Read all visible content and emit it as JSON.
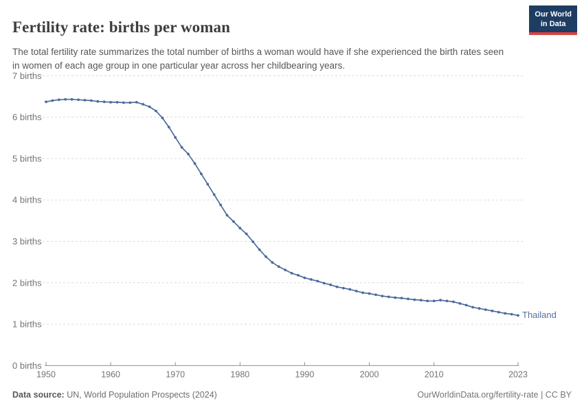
{
  "header": {
    "title": "Fertility rate: births per woman",
    "subtitle": "The total fertility rate summarizes the total number of births a woman would have if she experienced the birth rates seen in women of each age group in one particular year across her childbearing years.",
    "logo": {
      "line1": "Our World",
      "line2": "in Data"
    }
  },
  "chart_data": {
    "type": "line",
    "title": "Fertility rate: births per woman",
    "ylabel_unit": "births",
    "ylim": [
      0,
      7
    ],
    "yticks": [
      0,
      1,
      2,
      3,
      4,
      5,
      6,
      7
    ],
    "ytick_labels": [
      "0 births",
      "1 births",
      "2 births",
      "3 births",
      "4 births",
      "5 births",
      "6 births",
      "7 births"
    ],
    "xlim": [
      1950,
      2023
    ],
    "xticks": [
      1950,
      1960,
      1970,
      1980,
      1990,
      2000,
      2010,
      2023
    ],
    "grid": "horizontal-dashed",
    "legend_position": "end-of-line-label",
    "x": [
      1950,
      1951,
      1952,
      1953,
      1954,
      1955,
      1956,
      1957,
      1958,
      1959,
      1960,
      1961,
      1962,
      1963,
      1964,
      1965,
      1966,
      1967,
      1968,
      1969,
      1970,
      1971,
      1972,
      1973,
      1974,
      1975,
      1976,
      1977,
      1978,
      1979,
      1980,
      1981,
      1982,
      1983,
      1984,
      1985,
      1986,
      1987,
      1988,
      1989,
      1990,
      1991,
      1992,
      1993,
      1994,
      1995,
      1996,
      1997,
      1998,
      1999,
      2000,
      2001,
      2002,
      2003,
      2004,
      2005,
      2006,
      2007,
      2008,
      2009,
      2010,
      2011,
      2012,
      2013,
      2014,
      2015,
      2016,
      2017,
      2018,
      2019,
      2020,
      2021,
      2022,
      2023
    ],
    "series": [
      {
        "name": "Thailand",
        "color": "#4C6A9C",
        "values": [
          6.37,
          6.4,
          6.42,
          6.43,
          6.43,
          6.42,
          6.41,
          6.4,
          6.38,
          6.37,
          6.36,
          6.36,
          6.35,
          6.35,
          6.36,
          6.31,
          6.25,
          6.15,
          5.98,
          5.76,
          5.51,
          5.27,
          5.11,
          4.88,
          4.63,
          4.38,
          4.13,
          3.88,
          3.63,
          3.48,
          3.32,
          3.18,
          2.99,
          2.8,
          2.63,
          2.49,
          2.39,
          2.31,
          2.23,
          2.18,
          2.12,
          2.08,
          2.04,
          1.99,
          1.95,
          1.9,
          1.87,
          1.84,
          1.8,
          1.76,
          1.74,
          1.71,
          1.68,
          1.66,
          1.64,
          1.63,
          1.61,
          1.59,
          1.58,
          1.56,
          1.56,
          1.58,
          1.56,
          1.54,
          1.5,
          1.46,
          1.41,
          1.38,
          1.35,
          1.32,
          1.29,
          1.26,
          1.24,
          1.21
        ]
      }
    ]
  },
  "footer": {
    "source_label": "Data source:",
    "source_value": " UN, World Population Prospects (2024)",
    "attribution": "OurWorldinData.org/fertility-rate | CC BY"
  },
  "colors": {
    "accent_line": "#4C6A9C",
    "series_label": "#54719c",
    "grid": "#dcdcdc",
    "axis": "#8f8f8f",
    "tick_text": "#737373",
    "logo_bg": "#1d3d63",
    "logo_red": "#dc4340"
  }
}
